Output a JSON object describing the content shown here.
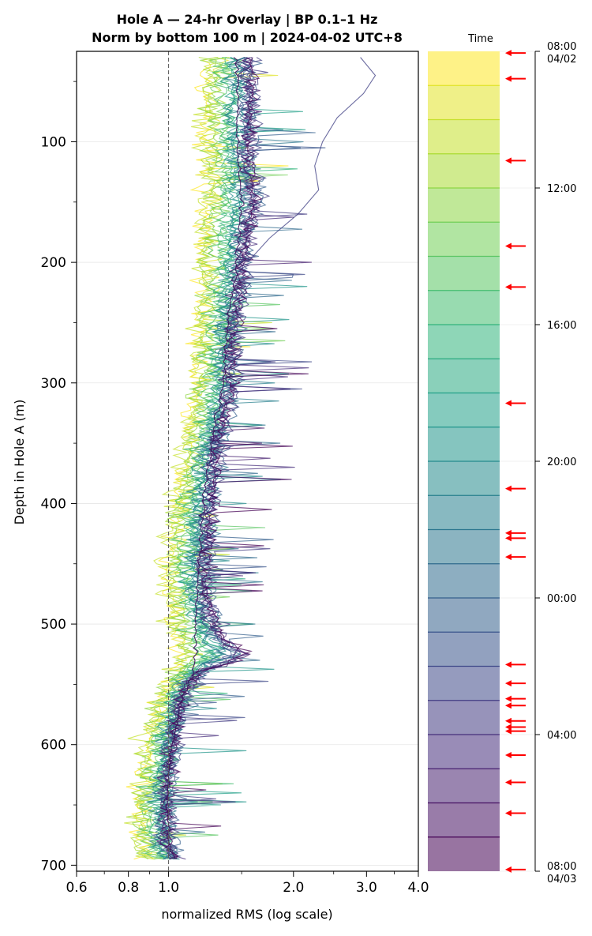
{
  "chart_data": [
    {
      "type": "line",
      "title": "Hole A — 24-hr Overlay  |  BP 0.1–1 Hz",
      "subtitle": "Norm by bottom 100 m  |  2024-04-02 UTC+8",
      "xlabel": "normalized RMS  (log scale)",
      "ylabel": "Depth in Hole A (m)",
      "x_scale": "log",
      "xlim": [
        0.6,
        4.0
      ],
      "ylim": [
        705,
        25
      ],
      "y_inverted": true,
      "x_ticks": [
        0.6,
        0.8,
        1.0,
        2.0,
        3.0,
        4.0
      ],
      "x_tick_labels": [
        "0.6",
        "0.8",
        "1.0",
        "2.0",
        "3.0",
        "4.0"
      ],
      "y_ticks": [
        100,
        200,
        300,
        400,
        500,
        600,
        700
      ],
      "y_tick_labels": [
        "100",
        "200",
        "300",
        "400",
        "500",
        "600",
        "700"
      ],
      "grid": "horizontal",
      "reference_line": {
        "x": 1.0,
        "style": "dashed"
      },
      "depth_range": [
        30,
        695
      ],
      "trace_count": 24,
      "colormap": "viridis",
      "median_profile": {
        "depth": [
          30,
          60,
          90,
          120,
          150,
          180,
          210,
          240,
          270,
          300,
          330,
          360,
          390,
          420,
          450,
          480,
          510,
          525,
          540,
          560,
          590,
          620,
          650,
          680,
          695
        ],
        "x": [
          1.45,
          1.47,
          1.46,
          1.48,
          1.5,
          1.47,
          1.45,
          1.4,
          1.37,
          1.36,
          1.3,
          1.26,
          1.22,
          1.2,
          1.18,
          1.17,
          1.16,
          1.16,
          1.15,
          1.08,
          1.03,
          1.0,
          0.99,
          1.0,
          1.03
        ]
      },
      "peak_profile": {
        "depth": [
          30,
          60,
          90,
          120,
          150,
          180,
          210,
          240,
          270,
          300,
          330,
          360,
          390,
          420,
          450,
          480,
          510,
          525,
          540,
          560,
          590,
          620,
          650,
          680,
          695
        ],
        "x": [
          1.85,
          1.9,
          1.85,
          1.8,
          1.95,
          1.75,
          1.7,
          1.65,
          1.62,
          1.6,
          1.55,
          1.45,
          1.45,
          1.42,
          1.38,
          1.4,
          1.7,
          2.4,
          1.3,
          1.15,
          1.1,
          1.08,
          1.05,
          1.05,
          1.1
        ]
      },
      "lowest_profile": {
        "depth": [
          30,
          60,
          90,
          120,
          150,
          180,
          210,
          240,
          270,
          300,
          330,
          360,
          390,
          420,
          450,
          480,
          510,
          525,
          540,
          560,
          590,
          620,
          650,
          680,
          695
        ],
        "x": [
          1.05,
          1.0,
          1.02,
          1.0,
          0.98,
          0.97,
          1.0,
          1.02,
          1.0,
          1.0,
          0.98,
          0.95,
          0.9,
          0.85,
          0.82,
          0.85,
          0.95,
          1.0,
          0.95,
          0.85,
          0.8,
          0.75,
          0.72,
          0.7,
          0.75
        ]
      },
      "outlier_trace": {
        "depth": [
          30,
          45,
          60,
          80,
          100,
          120,
          140,
          160,
          180,
          200
        ],
        "x": [
          2.9,
          3.15,
          2.95,
          2.55,
          2.35,
          2.25,
          2.3,
          2.05,
          1.75,
          1.55
        ]
      }
    },
    {
      "type": "heatmap",
      "title": "Time",
      "colormap": "viridis",
      "band_count": 24,
      "tick_labels": [
        "08:00",
        "12:00",
        "16:00",
        "20:00",
        "00:00",
        "04:00",
        "08:00"
      ],
      "tick_sublabels": [
        "04/02",
        "",
        "",
        "",
        "",
        "",
        "04/03"
      ],
      "tick_hours": [
        0,
        4,
        8,
        12,
        16,
        20,
        24
      ],
      "event_marker_color": "#ff0000",
      "event_hours": [
        0.05,
        0.8,
        3.2,
        5.7,
        6.9,
        10.3,
        12.8,
        14.1,
        14.25,
        14.8,
        17.95,
        18.5,
        18.95,
        19.15,
        19.6,
        19.78,
        19.9,
        20.6,
        21.4,
        22.3,
        23.95
      ]
    }
  ]
}
